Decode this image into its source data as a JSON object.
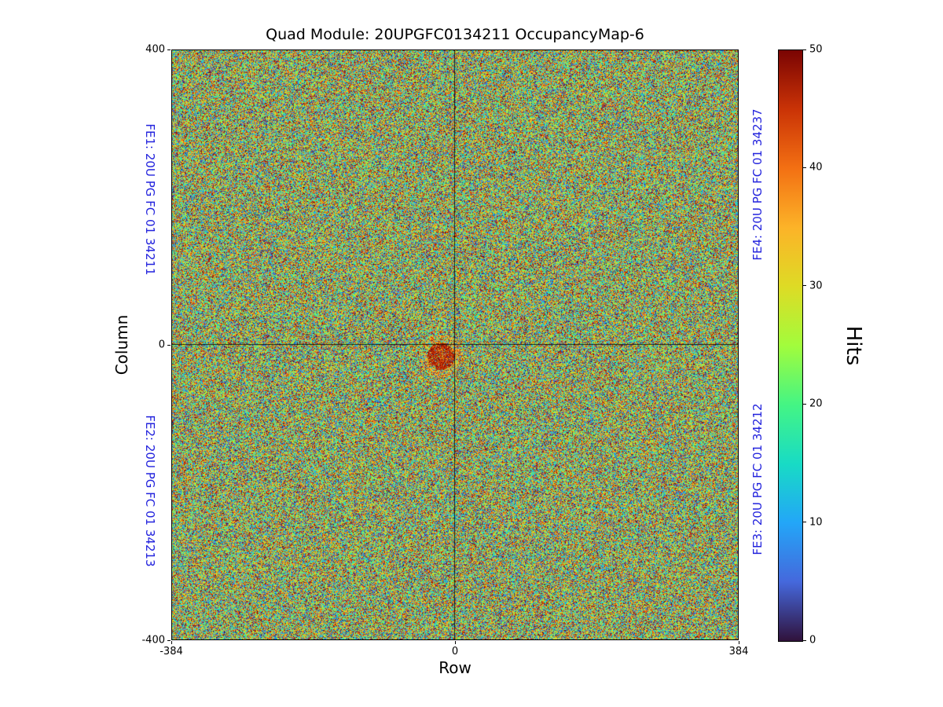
{
  "title": "Quad Module: 20UPGFC0134211 OccupancyMap-6",
  "axes": {
    "xlabel": "Row",
    "ylabel": "Column",
    "x_ticks": [
      {
        "label": "-384",
        "frac": 0.0
      },
      {
        "label": "0",
        "frac": 0.5
      },
      {
        "label": "384",
        "frac": 1.0
      }
    ],
    "y_ticks": [
      {
        "label": "400",
        "frac": 0.0
      },
      {
        "label": "0",
        "frac": 0.5
      },
      {
        "label": "-400",
        "frac": 1.0
      }
    ]
  },
  "fe_labels": {
    "fe1": "FE1: 20U PG FC 01 34211",
    "fe2": "FE2: 20U PG FC 01 34213",
    "fe3": "FE3: 20U PG FC 01 34212",
    "fe4": "FE4: 20U PG FC 01 34237",
    "color": "#2222dd"
  },
  "colorbar": {
    "label": "Hits",
    "ticks": [
      0,
      10,
      20,
      30,
      40,
      50
    ],
    "vmin": 0,
    "vmax": 50,
    "colormap": "turbo",
    "gradient": [
      {
        "t": 0.0,
        "color": "#30123b"
      },
      {
        "t": 0.1,
        "color": "#4568dc"
      },
      {
        "t": 0.2,
        "color": "#23a6f8"
      },
      {
        "t": 0.3,
        "color": "#18dbc5"
      },
      {
        "t": 0.4,
        "color": "#44f584"
      },
      {
        "t": 0.5,
        "color": "#a2fc3c"
      },
      {
        "t": 0.6,
        "color": "#dedb25"
      },
      {
        "t": 0.7,
        "color": "#fcb328"
      },
      {
        "t": 0.8,
        "color": "#f37013"
      },
      {
        "t": 0.9,
        "color": "#ca3306"
      },
      {
        "t": 1.0,
        "color": "#7a0403"
      }
    ]
  },
  "chart_data": {
    "type": "heatmap",
    "title": "Quad Module: 20UPGFC0134211 OccupancyMap-6",
    "xlabel": "Row",
    "ylabel": "Column",
    "xlim": [
      -384,
      384
    ],
    "ylim": [
      -400,
      400
    ],
    "vmin": 0,
    "vmax": 50,
    "colormap": "turbo",
    "colorbar_label": "Hits",
    "grid": false,
    "values_note": "Per-pixel hit occupancy noise, approximately uniform between 0 and 50 hits across all four front-end chips; thin dark separation lines at Row=0 and Column=0; small cluster of high (dark red, ~45-50) occupancy just left of and below the plot center.",
    "quadrants": [
      {
        "position": "top-left",
        "label": "FE1: 20U PG FC 01 34211"
      },
      {
        "position": "bottom-left",
        "label": "FE2: 20U PG FC 01 34213"
      },
      {
        "position": "top-right",
        "label": "FE4: 20U PG FC 01 34237"
      },
      {
        "position": "bottom-right",
        "label": "FE3: 20U PG FC 01 34212"
      }
    ]
  }
}
